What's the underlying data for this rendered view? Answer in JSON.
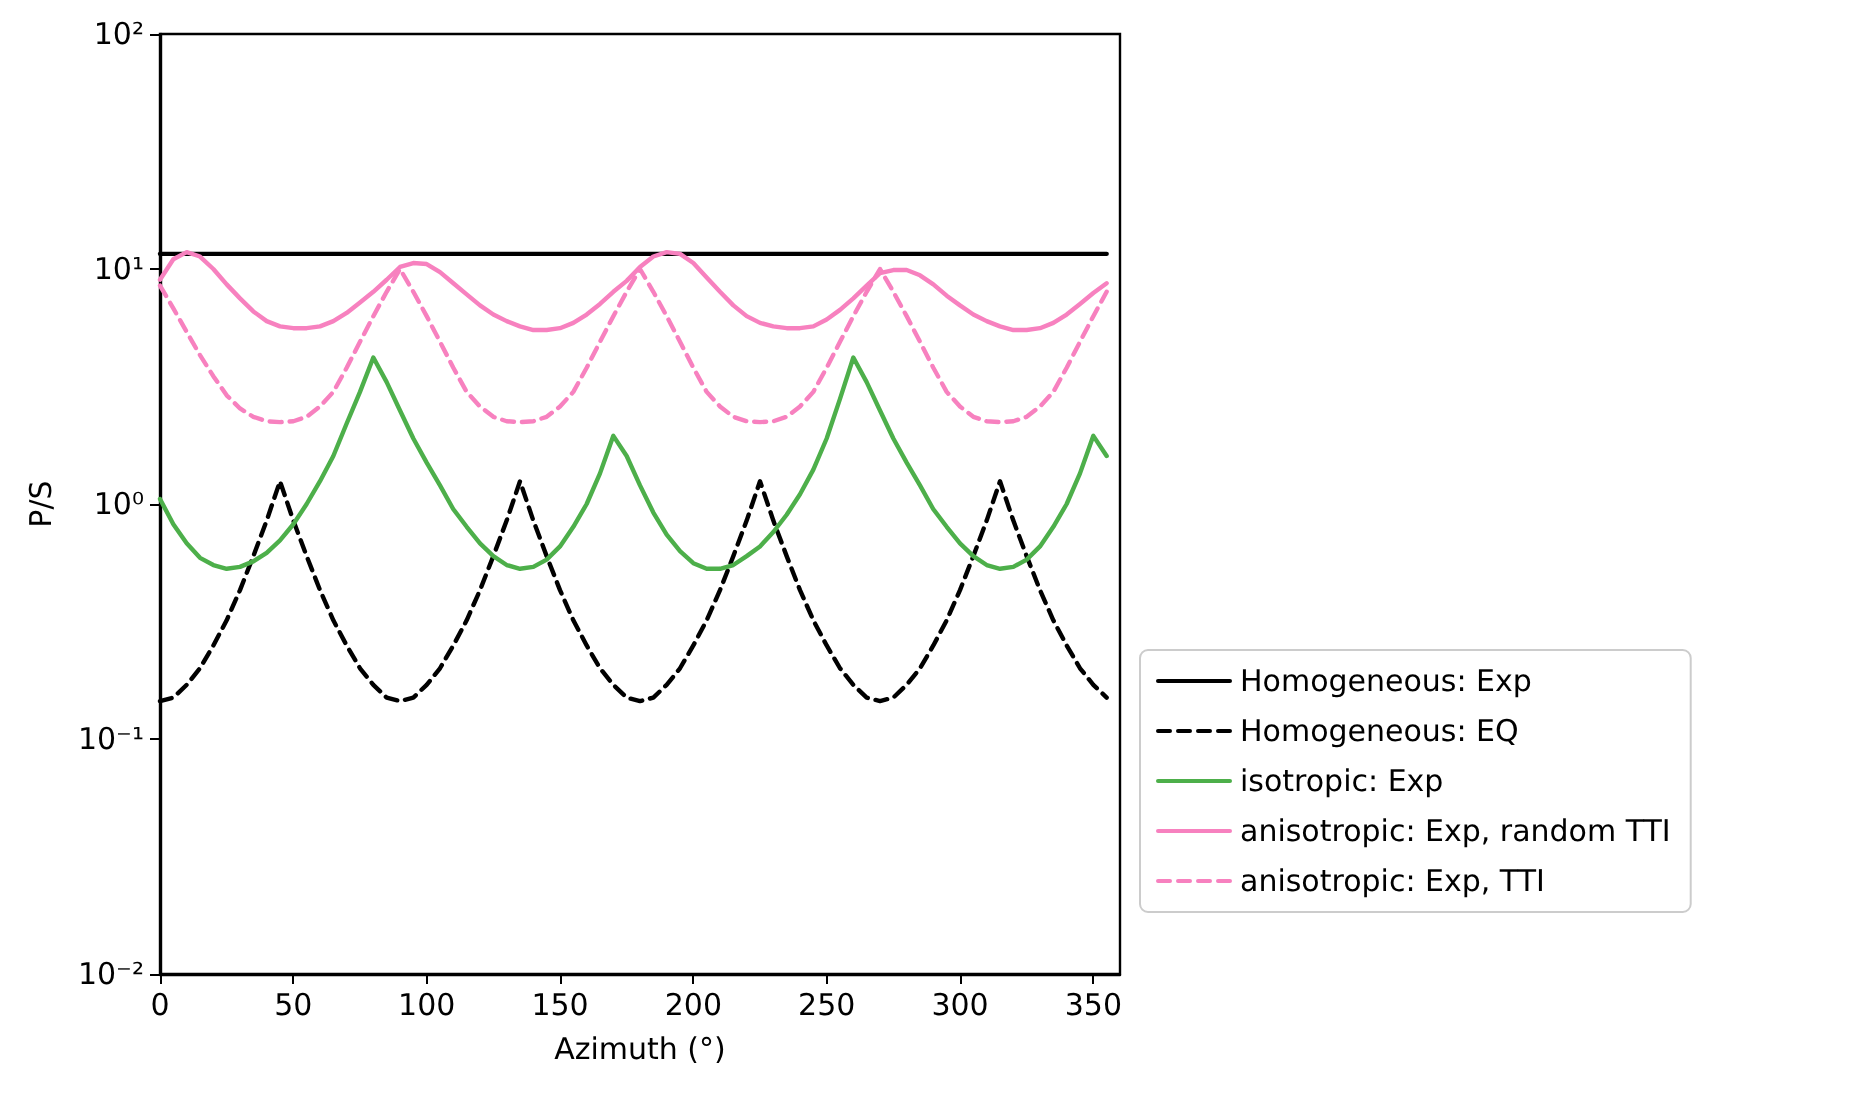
{
  "chart_data": {
    "type": "line",
    "xlabel": "Azimuth (°)",
    "ylabel": "P/S",
    "log": "y",
    "x": [
      0,
      5,
      10,
      15,
      20,
      25,
      30,
      35,
      40,
      45,
      50,
      55,
      60,
      65,
      70,
      75,
      80,
      85,
      90,
      95,
      100,
      105,
      110,
      115,
      120,
      125,
      130,
      135,
      140,
      145,
      150,
      155,
      160,
      165,
      170,
      175,
      180,
      185,
      190,
      195,
      200,
      205,
      210,
      215,
      220,
      225,
      230,
      235,
      240,
      245,
      250,
      255,
      260,
      265,
      270,
      275,
      280,
      285,
      290,
      295,
      300,
      305,
      310,
      315,
      320,
      325,
      330,
      335,
      340,
      345,
      350,
      355
    ],
    "xlim": [
      0,
      360
    ],
    "xticks": [
      0,
      50,
      100,
      150,
      200,
      250,
      300,
      350
    ],
    "ylim": [
      0.01,
      100
    ],
    "yticks": [
      {
        "value": 0.01,
        "label": "10⁻²"
      },
      {
        "value": 0.1,
        "label": "10⁻¹"
      },
      {
        "value": 1,
        "label": "10⁰"
      },
      {
        "value": 10,
        "label": "10¹"
      },
      {
        "value": 100,
        "label": "10²"
      }
    ],
    "grid": false,
    "legend": "right",
    "series": [
      {
        "name": "Homogeneous: Exp",
        "color": "#000000",
        "line_style": "solid",
        "values": [
          11.6,
          11.6,
          11.6,
          11.6,
          11.6,
          11.6,
          11.6,
          11.6,
          11.6,
          11.6,
          11.6,
          11.6,
          11.6,
          11.6,
          11.6,
          11.6,
          11.6,
          11.6,
          11.6,
          11.6,
          11.6,
          11.6,
          11.6,
          11.6,
          11.6,
          11.6,
          11.6,
          11.6,
          11.6,
          11.6,
          11.6,
          11.6,
          11.6,
          11.6,
          11.6,
          11.6,
          11.6,
          11.6,
          11.6,
          11.6,
          11.6,
          11.6,
          11.6,
          11.6,
          11.6,
          11.6,
          11.6,
          11.6,
          11.6,
          11.6,
          11.6,
          11.6,
          11.6,
          11.6,
          11.6,
          11.6,
          11.6,
          11.6,
          11.6,
          11.6,
          11.6,
          11.6,
          11.6,
          11.6,
          11.6,
          11.6,
          11.6,
          11.6,
          11.6,
          11.6,
          11.6,
          11.6
        ]
      },
      {
        "name": "Homogeneous: EQ",
        "color": "#000000",
        "line_style": "dashed",
        "values": [
          0.145,
          0.15,
          0.17,
          0.2,
          0.25,
          0.32,
          0.43,
          0.6,
          0.85,
          1.25,
          0.85,
          0.6,
          0.43,
          0.32,
          0.25,
          0.2,
          0.17,
          0.15,
          0.145,
          0.15,
          0.17,
          0.2,
          0.25,
          0.32,
          0.43,
          0.6,
          0.85,
          1.25,
          0.85,
          0.6,
          0.43,
          0.32,
          0.25,
          0.2,
          0.17,
          0.15,
          0.145,
          0.15,
          0.17,
          0.2,
          0.25,
          0.32,
          0.43,
          0.6,
          0.85,
          1.25,
          0.85,
          0.6,
          0.43,
          0.32,
          0.25,
          0.2,
          0.17,
          0.15,
          0.145,
          0.15,
          0.17,
          0.2,
          0.25,
          0.32,
          0.43,
          0.6,
          0.85,
          1.25,
          0.85,
          0.6,
          0.43,
          0.32,
          0.25,
          0.2,
          0.17,
          0.15
        ]
      },
      {
        "name": "isotropic: Exp",
        "color": "#4daf4a",
        "line_style": "solid",
        "values": [
          1.05,
          0.82,
          0.68,
          0.59,
          0.55,
          0.53,
          0.54,
          0.57,
          0.62,
          0.7,
          0.82,
          1.0,
          1.25,
          1.6,
          2.2,
          3.0,
          4.2,
          3.3,
          2.5,
          1.9,
          1.5,
          1.2,
          0.95,
          0.8,
          0.68,
          0.6,
          0.55,
          0.53,
          0.54,
          0.58,
          0.66,
          0.8,
          1.0,
          1.35,
          1.95,
          1.6,
          1.2,
          0.92,
          0.74,
          0.63,
          0.56,
          0.53,
          0.53,
          0.55,
          0.6,
          0.66,
          0.76,
          0.9,
          1.1,
          1.4,
          1.9,
          2.8,
          4.2,
          3.3,
          2.5,
          1.9,
          1.5,
          1.2,
          0.95,
          0.8,
          0.68,
          0.6,
          0.55,
          0.53,
          0.54,
          0.58,
          0.66,
          0.8,
          1.0,
          1.35,
          1.95,
          1.6
        ]
      },
      {
        "name": "anisotropic: Exp, random TTI",
        "color": "#f781bf",
        "line_style": "solid",
        "values": [
          9.0,
          11.0,
          11.8,
          11.3,
          10.0,
          8.6,
          7.5,
          6.6,
          6.0,
          5.7,
          5.6,
          5.6,
          5.7,
          6.0,
          6.5,
          7.2,
          8.0,
          9.0,
          10.2,
          10.6,
          10.5,
          9.7,
          8.7,
          7.8,
          7.0,
          6.4,
          6.0,
          5.7,
          5.5,
          5.5,
          5.6,
          5.9,
          6.4,
          7.1,
          8.0,
          8.9,
          10.2,
          11.3,
          11.8,
          11.6,
          10.6,
          9.2,
          8.0,
          7.0,
          6.3,
          5.9,
          5.7,
          5.6,
          5.6,
          5.7,
          6.1,
          6.7,
          7.5,
          8.5,
          9.6,
          9.9,
          9.9,
          9.4,
          8.6,
          7.7,
          7.0,
          6.4,
          6.0,
          5.7,
          5.5,
          5.5,
          5.6,
          5.9,
          6.4,
          7.1,
          7.9,
          8.7
        ]
      },
      {
        "name": "anisotropic: Exp, TTI",
        "color": "#f781bf",
        "line_style": "dashed",
        "values": [
          8.5,
          6.8,
          5.4,
          4.3,
          3.5,
          2.9,
          2.55,
          2.35,
          2.25,
          2.23,
          2.25,
          2.35,
          2.6,
          3.0,
          3.8,
          4.9,
          6.3,
          8.0,
          10,
          8.0,
          6.3,
          4.9,
          3.8,
          3.0,
          2.6,
          2.35,
          2.25,
          2.23,
          2.25,
          2.35,
          2.6,
          3.0,
          3.8,
          4.9,
          6.3,
          8.0,
          10,
          8.0,
          6.3,
          4.9,
          3.8,
          3.0,
          2.6,
          2.35,
          2.25,
          2.23,
          2.25,
          2.35,
          2.6,
          3.0,
          3.8,
          4.9,
          6.3,
          8.0,
          10,
          8.0,
          6.3,
          4.9,
          3.8,
          3.0,
          2.6,
          2.35,
          2.25,
          2.23,
          2.25,
          2.35,
          2.6,
          3.0,
          3.8,
          4.9,
          6.3,
          8.0
        ]
      }
    ]
  }
}
